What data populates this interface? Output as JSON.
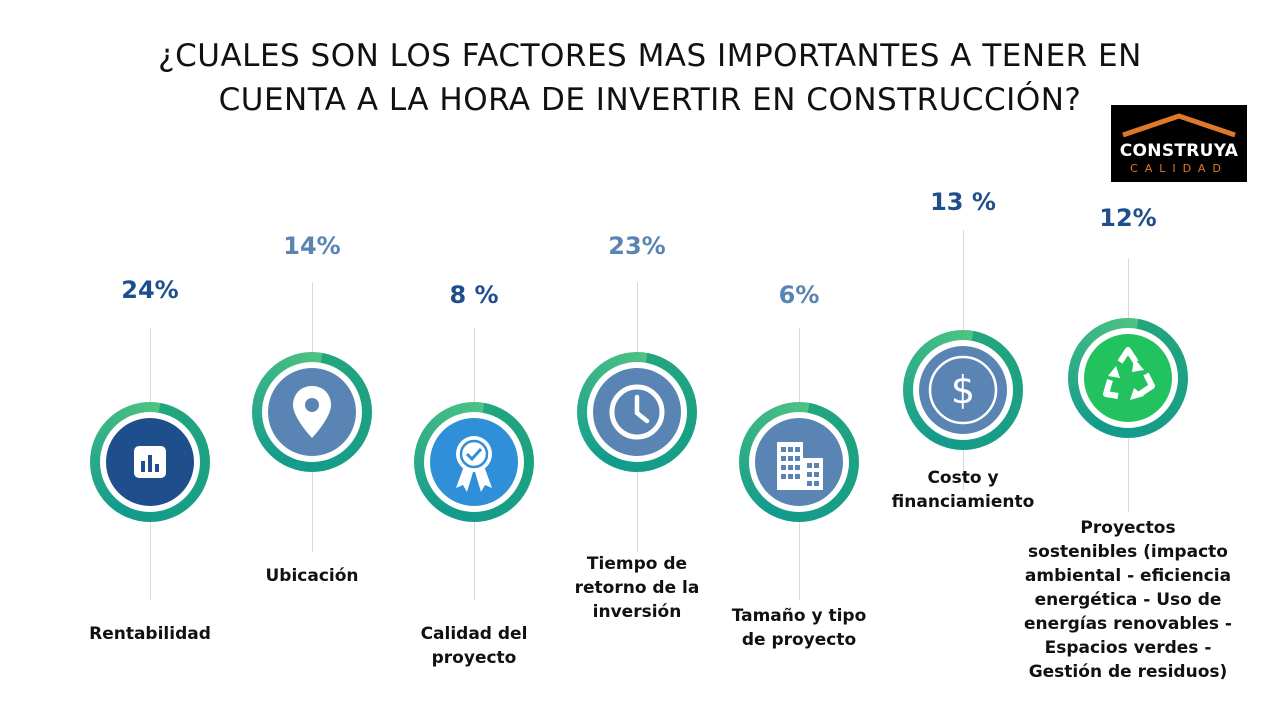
{
  "title": {
    "line1": "¿CUALES SON LOS FACTORES MAS IMPORTANTES A TENER EN",
    "line2": "CUENTA A LA HORA DE INVERTIR EN CONSTRUCCIÓN?"
  },
  "logo": {
    "name": "CONSTRUYA",
    "tagline": "CALIDAD"
  },
  "colors": {
    "dark_blue": "#1f4e8c",
    "steel_blue": "#5a84b4",
    "ring_green": "#1fa07f",
    "recycle_green": "#22c25e",
    "sky_blue": "#2f8fd8"
  },
  "chart_data": {
    "type": "diagram",
    "items": [
      {
        "label": "Rentabilidad",
        "value": "24%",
        "icon": "bar-chart-icon"
      },
      {
        "label": "Ubicación",
        "value": "14%",
        "icon": "location-pin-icon"
      },
      {
        "label": "Calidad del proyecto",
        "value": "8 %",
        "icon": "quality-ribbon-icon"
      },
      {
        "label": "Tiempo de retorno de la inversión",
        "value": "23%",
        "icon": "clock-icon"
      },
      {
        "label": "Tamaño y tipo de proyecto",
        "value": "6%",
        "icon": "buildings-icon"
      },
      {
        "label": "Costo y financiamiento",
        "value": "13 %",
        "icon": "dollar-coin-icon"
      },
      {
        "label": "Proyectos sostenibles (impacto ambiental - eficiencia energética - Uso de energías renovables - Espacios verdes - Gestión de residuos)",
        "value": "12%",
        "icon": "recycle-icon"
      }
    ]
  },
  "labels": {
    "l1": [
      "Rentabilidad"
    ],
    "l2": [
      "Ubicación"
    ],
    "l3": [
      "Calidad del",
      "proyecto"
    ],
    "l4": [
      "Tiempo de",
      "retorno de la",
      "inversión"
    ],
    "l5": [
      "Tamaño y tipo",
      "de proyecto"
    ],
    "l6": [
      "Costo y",
      "financiamiento"
    ],
    "l7": [
      "Proyectos",
      "sostenibles (impacto",
      "ambiental - eficiencia",
      "energética - Uso de",
      "energías renovables -",
      "Espacios verdes -",
      "Gestión de residuos)"
    ]
  }
}
